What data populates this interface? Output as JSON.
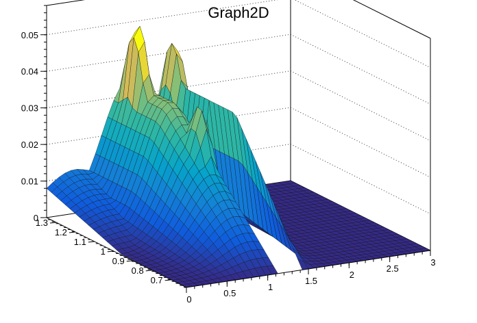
{
  "chart_data": {
    "type": "surface3d",
    "title": "Graph2D",
    "xlabel": "",
    "ylabel": "",
    "zlabel": "",
    "x_ticks": [
      "0",
      "0.5",
      "1",
      "1.5",
      "2",
      "2.5",
      "3"
    ],
    "y_ticks": [
      "0.7",
      "0.8",
      "0.9",
      "1",
      "1.1",
      "1.2",
      "1.3"
    ],
    "z_ticks": [
      "0",
      "0.01",
      "0.02",
      "0.03",
      "0.04",
      "0.05"
    ],
    "xlim": [
      0,
      3
    ],
    "ylim": [
      0.62,
      1.35
    ],
    "zlim": [
      0,
      0.058
    ],
    "grid": true,
    "palette": "kBird",
    "surface_peaks": [
      {
        "x": 0.95,
        "y": 1.28,
        "z": 0.052
      },
      {
        "x": 1.45,
        "y": 1.3,
        "z": 0.045
      },
      {
        "x": 1.05,
        "y": 1.0,
        "z": 0.036
      }
    ]
  }
}
